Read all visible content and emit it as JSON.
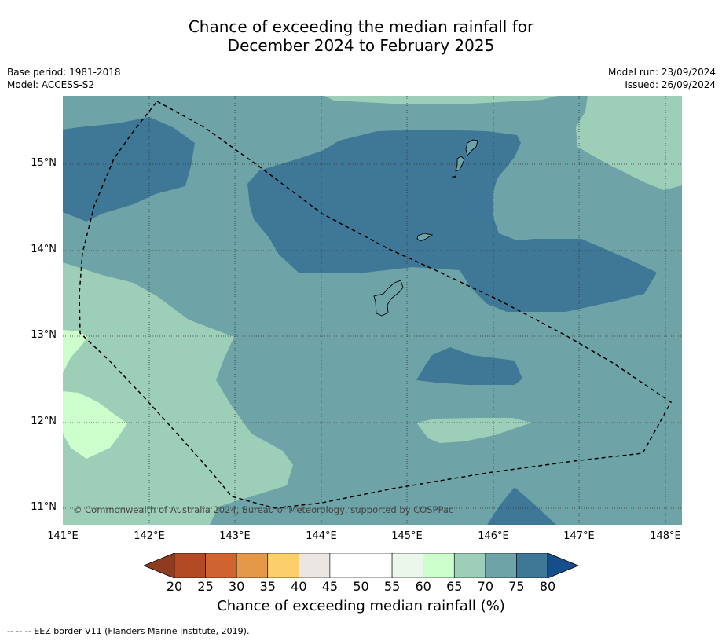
{
  "title_line1": "Chance of exceeding the median rainfall for",
  "title_line2": "December 2024 to February 2025",
  "base_period": "Base period: 1981-2018",
  "model": "Model: ACCESS-S2",
  "model_run": "Model run: 23/09/2024",
  "issued": "Issued: 26/09/2024",
  "copyright": "© Commonwealth of Australia 2024, Bureau of Meteorology, supported by COSPPac",
  "lat_labels": [
    "15°N",
    "14°N",
    "13°N",
    "12°N",
    "11°N"
  ],
  "lon_labels": [
    "141°E",
    "142°E",
    "143°E",
    "144°E",
    "145°E",
    "146°E",
    "147°E",
    "148°E"
  ],
  "colorbar": {
    "ticks": [
      "20",
      "25",
      "30",
      "35",
      "40",
      "45",
      "50",
      "55",
      "60",
      "65",
      "70",
      "75",
      "80"
    ],
    "colors": [
      "#b24a26",
      "#d06430",
      "#e3984a",
      "#fdcf6a",
      "#ebe6e1",
      "#ffffff",
      "#ffffff",
      "#eaf7ea",
      "#ccffcc",
      "#9dcfb8",
      "#6ea4a7",
      "#3f7896"
    ],
    "under_color": "#8f3b1f",
    "over_color": "#154e8a",
    "label": "Chance of exceeding median rainfall (%)"
  },
  "footnote": "--  --  -- EEZ border V11 (Flanders Marine Institute, 2019)."
}
